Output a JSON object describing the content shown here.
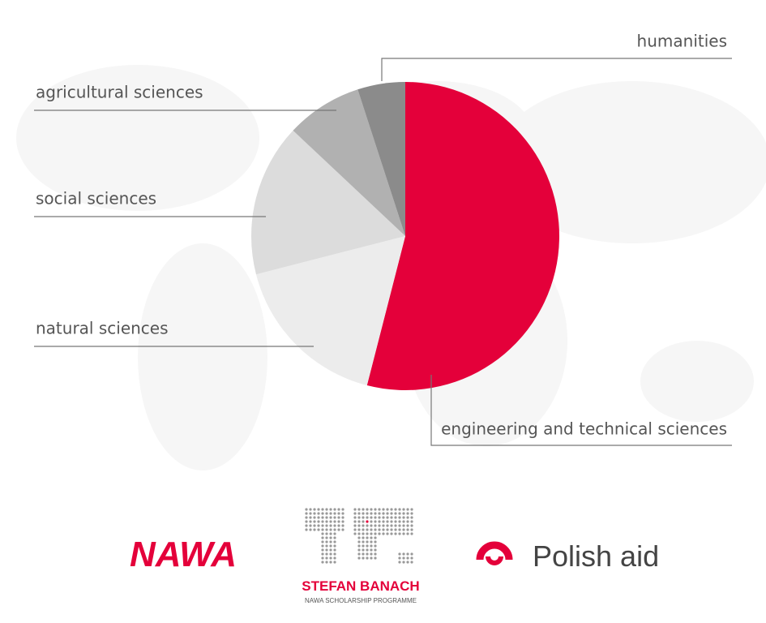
{
  "chart_data": {
    "type": "pie",
    "categories": [
      "engineering and technical sciences",
      "natural sciences",
      "social sciences",
      "agricultural sciences",
      "humanities"
    ],
    "values": [
      54,
      17,
      16,
      8,
      5
    ],
    "colors": [
      "#e4003a",
      "#ececec",
      "#dcdcdc",
      "#b1b1b1",
      "#8b8b8b"
    ],
    "start_angle": 0,
    "direction": "clockwise"
  },
  "footer": {
    "logos": [
      {
        "name": "NAWA"
      },
      {
        "name": "STEFAN BANACH",
        "subtitle": "NAWA SCHOLARSHIP PROGRAMME"
      },
      {
        "name": "Polish aid"
      }
    ]
  }
}
